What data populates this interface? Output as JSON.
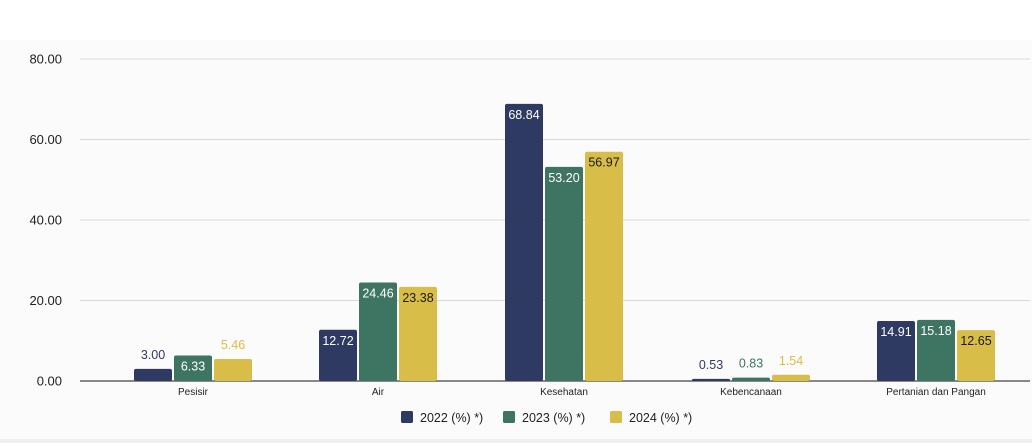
{
  "colors": {
    "series_2022": "#2e3a62",
    "series_2023": "#3e7462",
    "series_2024": "#d9bd49",
    "grid": "#d8d8d8",
    "axis": "#444444"
  },
  "chart_data": {
    "type": "bar",
    "title": "",
    "xlabel": "",
    "ylabel": "",
    "ylim": [
      0,
      80
    ],
    "yticks": [
      0,
      20,
      40,
      60,
      80
    ],
    "ytick_labels": [
      "0.00",
      "20.00",
      "40.00",
      "60.00",
      "80.00"
    ],
    "grid": true,
    "legend_position": "bottom-center",
    "categories": [
      "Pesisir",
      "Air",
      "Kesehatan",
      "Kebencanaan",
      "Pertanian dan Pangan"
    ],
    "series": [
      {
        "name": "2022 (%) *)",
        "color": "#2e3a62",
        "values": [
          3.0,
          12.72,
          68.84,
          0.53,
          14.91
        ],
        "labels": [
          "3.00",
          "12.72",
          "68.84",
          "0.53",
          "14.91"
        ]
      },
      {
        "name": "2023 (%) *)",
        "color": "#3e7462",
        "values": [
          6.33,
          24.46,
          53.2,
          0.83,
          15.18
        ],
        "labels": [
          "6.33",
          "24.46",
          "53.20",
          "0.83",
          "15.18"
        ]
      },
      {
        "name": "2024 (%) *)",
        "color": "#d9bd49",
        "values": [
          5.46,
          23.38,
          56.97,
          1.54,
          12.65
        ],
        "labels": [
          "5.46",
          "23.38",
          "56.97",
          "1.54",
          "12.65"
        ]
      }
    ]
  }
}
